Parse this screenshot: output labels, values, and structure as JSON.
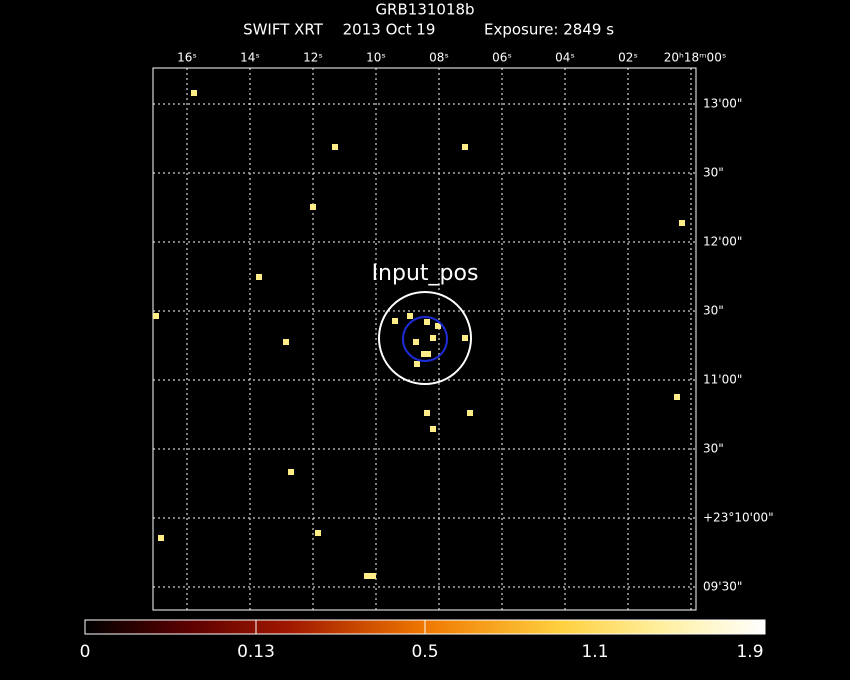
{
  "header": {
    "title": "GRB131018b",
    "instrument": "SWIFT XRT",
    "date": "2013 Oct 19",
    "exposure": "Exposure: 2849 s"
  },
  "region_label": "Input_pos",
  "ra_labels": [
    "16ˢ",
    "14ˢ",
    "12ˢ",
    "10ˢ",
    "08ˢ",
    "06ˢ",
    "04ˢ",
    "02ˢ",
    "20ʰ18ᵐ00ˢ"
  ],
  "dec_labels": [
    "13'00\"",
    "30\"",
    "12'00\"",
    "30\"",
    "11'00\"",
    "30\"",
    "+23°10'00\"",
    "09'30\""
  ],
  "colorbar_labels": [
    "0",
    "0.13",
    "0.5",
    "1.1",
    "1.9"
  ]
}
